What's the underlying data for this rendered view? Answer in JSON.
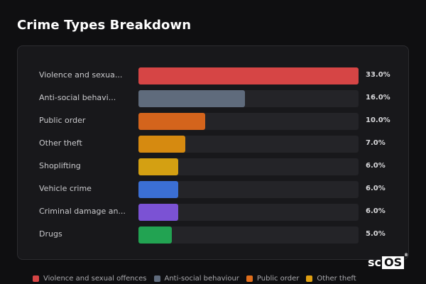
{
  "chart_data": {
    "type": "bar",
    "orientation": "horizontal",
    "title": "Crime Types Breakdown",
    "categories": [
      {
        "label": "Violence and sexua...",
        "value": 33.0,
        "value_label": "33.0%",
        "color": "#d64545"
      },
      {
        "label": "Anti-social behavi...",
        "value": 16.0,
        "value_label": "16.0%",
        "color": "#5f6b7c"
      },
      {
        "label": "Public order",
        "value": 10.0,
        "value_label": "10.0%",
        "color": "#d4641c"
      },
      {
        "label": "Other theft",
        "value": 7.0,
        "value_label": "7.0%",
        "color": "#d68a10"
      },
      {
        "label": "Shoplifting",
        "value": 6.0,
        "value_label": "6.0%",
        "color": "#d4a012"
      },
      {
        "label": "Vehicle crime",
        "value": 6.0,
        "value_label": "6.0%",
        "color": "#3b6fd4"
      },
      {
        "label": "Criminal damage an...",
        "value": 6.0,
        "value_label": "6.0%",
        "color": "#7b52d4"
      },
      {
        "label": "Drugs",
        "value": 5.0,
        "value_label": "5.0%",
        "color": "#22a352"
      }
    ],
    "xlim": [
      0,
      33
    ]
  },
  "legend": [
    {
      "label": "Violence and sexual offences",
      "color": "#d64545"
    },
    {
      "label": "Anti-social behaviour",
      "color": "#5f6b7c"
    },
    {
      "label": "Public order",
      "color": "#e06e1c"
    },
    {
      "label": "Other theft",
      "color": "#e0a012"
    }
  ],
  "logo": {
    "sc": "sc",
    "os": "OS",
    "reg": "®"
  }
}
